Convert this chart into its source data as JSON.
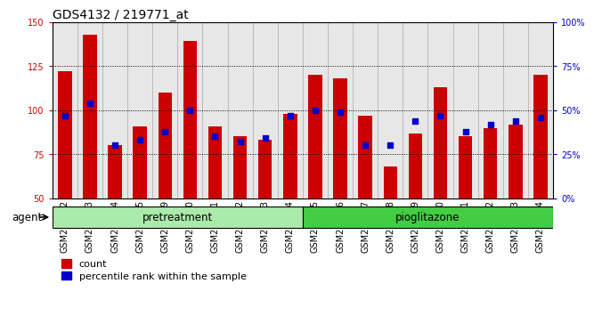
{
  "title": "GDS4132 / 219771_at",
  "categories": [
    "GSM201542",
    "GSM201543",
    "GSM201544",
    "GSM201545",
    "GSM201829",
    "GSM201830",
    "GSM201831",
    "GSM201832",
    "GSM201833",
    "GSM201834",
    "GSM201835",
    "GSM201836",
    "GSM201837",
    "GSM201838",
    "GSM201839",
    "GSM201840",
    "GSM201841",
    "GSM201842",
    "GSM201843",
    "GSM201844"
  ],
  "count_values": [
    122,
    143,
    80,
    91,
    110,
    139,
    91,
    85,
    83,
    98,
    120,
    118,
    97,
    68,
    87,
    113,
    85,
    90,
    92,
    120
  ],
  "percentile_values_pct": [
    47,
    54,
    30,
    33,
    38,
    50,
    35,
    32,
    34,
    47,
    50,
    49,
    30,
    30,
    44,
    47,
    38,
    42,
    44,
    46
  ],
  "bar_color": "#cc0000",
  "dot_color": "#0000cc",
  "ylim_left": [
    50,
    150
  ],
  "ylim_right": [
    0,
    100
  ],
  "y_ticks_left": [
    50,
    75,
    100,
    125,
    150
  ],
  "y_ticks_right": [
    0,
    25,
    50,
    75,
    100
  ],
  "y_tick_labels_right": [
    "0%",
    "25%",
    "50%",
    "75%",
    "100%"
  ],
  "pretreatment_color": "#aaeaaa",
  "pioglitazone_color": "#44cc44",
  "agent_label": "agent",
  "legend_count_label": "count",
  "legend_percentile_label": "percentile rank within the sample",
  "background_color": "#ffffff",
  "cell_bg_color": "#d4d4d4",
  "bar_width": 0.55,
  "n_pretreatment": 10,
  "n_pioglitazone": 10,
  "title_fontsize": 10,
  "tick_fontsize": 7,
  "axis_color_left": "#cc0000",
  "axis_color_right": "#0000cc"
}
